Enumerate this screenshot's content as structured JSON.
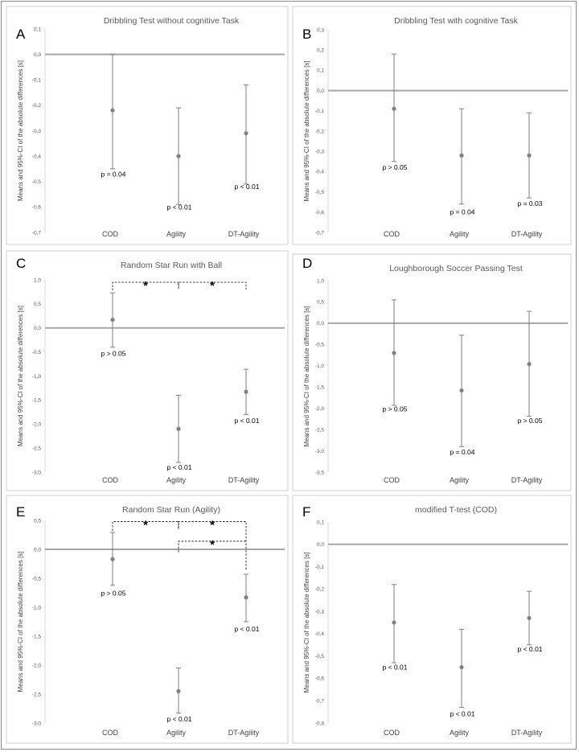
{
  "chart_data": [
    {
      "type": "scatter",
      "letter": "A",
      "title": "Dribbling Test without cognitive Task",
      "ylabel": "Means and 95%-CI of the absolute differences [s]",
      "ylim": [
        -0.7,
        0.1
      ],
      "yticks": [
        "0,1",
        "0,0",
        "-0,1",
        "-0,2",
        "-0,3",
        "-0,4",
        "-0,5",
        "-0,6",
        "-0,7"
      ],
      "categories": [
        "COD",
        "Agility",
        "DT-Agility"
      ],
      "means": [
        -0.22,
        -0.4,
        -0.31
      ],
      "ci_low": [
        -0.45,
        -0.59,
        -0.51
      ],
      "ci_high": [
        0.0,
        -0.21,
        -0.12
      ],
      "p_labels": [
        "p = 0.04",
        "p < 0.01",
        "p < 0.01"
      ],
      "p_label_y": [
        -0.48,
        -0.61,
        -0.53
      ],
      "brackets": []
    },
    {
      "type": "scatter",
      "letter": "B",
      "title": "Dribbling Test with cognitive Task",
      "ylabel": "Means and 95%-CI of the absolute differences [s]",
      "ylim": [
        -0.7,
        0.3
      ],
      "yticks": [
        "0,3",
        "0,2",
        "0,1",
        "0,0",
        "-0,1",
        "-0,2",
        "-0,3",
        "-0,4",
        "-0,5",
        "-0,6",
        "-0,7"
      ],
      "categories": [
        "COD",
        "Agility",
        "DT-Agility"
      ],
      "means": [
        -0.09,
        -0.32,
        -0.32
      ],
      "ci_low": [
        -0.35,
        -0.56,
        -0.53
      ],
      "ci_high": [
        0.18,
        -0.09,
        -0.11
      ],
      "p_labels": [
        "p > 0.05",
        "p = 0.04",
        "p = 0.03"
      ],
      "p_label_y": [
        -0.39,
        -0.61,
        -0.57
      ],
      "brackets": []
    },
    {
      "type": "scatter",
      "letter": "C",
      "title": "Random Star Run with Ball",
      "ylabel": "Means and 95%-CI of the absolute differences [s]",
      "ylim": [
        -3.0,
        1.0
      ],
      "yticks": [
        "1,0",
        "0,5",
        "0,0",
        "-0,5",
        "-1,0",
        "-1,5",
        "-2,0",
        "-2,5",
        "-3,0"
      ],
      "categories": [
        "COD",
        "Agility",
        "DT-Agility"
      ],
      "means": [
        0.17,
        -2.1,
        -1.33
      ],
      "ci_low": [
        -0.4,
        -2.8,
        -1.8
      ],
      "ci_high": [
        0.73,
        -1.4,
        -0.86
      ],
      "p_labels": [
        "p > 0.05",
        "p < 0.01",
        "p < 0.01"
      ],
      "p_label_y": [
        -0.58,
        -2.95,
        -1.98
      ],
      "brackets": [
        {
          "from": 0,
          "to": 1,
          "level": 0.95,
          "drop": [
            0.78,
            0.82
          ],
          "star": "*"
        },
        {
          "from": 1,
          "to": 2,
          "level": 0.95,
          "drop": [
            0.82,
            0.8
          ],
          "star": "*"
        }
      ]
    },
    {
      "type": "scatter",
      "letter": "D",
      "title": "Loughborough Soccer Passing Test",
      "ylabel": "Means and 95%-CI of the absolute differences [s]",
      "ylim": [
        -3.5,
        1.0
      ],
      "yticks": [
        "1,0",
        "0,5",
        "0,0",
        "-0,5",
        "-1,0",
        "-1,5",
        "-2,0",
        "-2,5",
        "-3,0",
        "-3,5"
      ],
      "categories": [
        "COD",
        "Agility",
        "DT-Agility"
      ],
      "means": [
        -0.7,
        -1.58,
        -0.96
      ],
      "ci_low": [
        -1.93,
        -2.9,
        -2.19
      ],
      "ci_high": [
        0.55,
        -0.28,
        0.28
      ],
      "p_labels": [
        "p > 0.05",
        "p = 0.04",
        "p > 0.05"
      ],
      "p_label_y": [
        -2.07,
        -3.08,
        -2.35
      ],
      "brackets": []
    },
    {
      "type": "scatter",
      "letter": "E",
      "title": "Random Star Run (Agility)",
      "ylabel": "Means and 95%-CI of the absolute differences [s]",
      "ylim": [
        -3.0,
        0.5
      ],
      "yticks": [
        "0,5",
        "0,0",
        "-0,5",
        "-1,0",
        "-1,5",
        "-2,0",
        "-2,5",
        "-3,0"
      ],
      "categories": [
        "COD",
        "Agility",
        "DT-Agility"
      ],
      "means": [
        -0.17,
        -2.45,
        -0.83
      ],
      "ci_low": [
        -0.62,
        -2.83,
        -1.25
      ],
      "ci_high": [
        0.29,
        -2.05,
        -0.43
      ],
      "p_labels": [
        "p > 0.05",
        "p < 0.01",
        "p < 0.01"
      ],
      "p_label_y": [
        -0.8,
        -2.97,
        -1.42
      ],
      "brackets": [
        {
          "from": 0,
          "to": 1,
          "level": 0.48,
          "drop": [
            0.32,
            0.35
          ],
          "star": "*"
        },
        {
          "from": 1,
          "to": 2,
          "level": 0.48,
          "drop": [
            0.35,
            -0.36
          ],
          "star": "*"
        },
        {
          "from": 1,
          "to": 2,
          "level": 0.14,
          "drop": [
            -0.05,
            0.14
          ],
          "star": "*"
        }
      ]
    },
    {
      "type": "scatter",
      "letter": "F",
      "title": "modified T-test (COD)",
      "ylabel": "Means and 95%-CI of the absolute differences [s]",
      "ylim": [
        -0.8,
        0.1
      ],
      "yticks": [
        "0,1",
        "0,0",
        "-0,1",
        "-0,2",
        "-0,3",
        "-0,4",
        "-0,5",
        "-0,6",
        "-0,7",
        "-0,8"
      ],
      "categories": [
        "COD",
        "Agility",
        "DT-Agility"
      ],
      "means": [
        -0.35,
        -0.55,
        -0.33
      ],
      "ci_low": [
        -0.53,
        -0.73,
        -0.45
      ],
      "ci_high": [
        -0.18,
        -0.38,
        -0.21
      ],
      "p_labels": [
        "p < 0.01",
        "p < 0.01",
        "p < 0.01"
      ],
      "p_label_y": [
        -0.56,
        -0.77,
        -0.48
      ],
      "brackets": []
    }
  ]
}
